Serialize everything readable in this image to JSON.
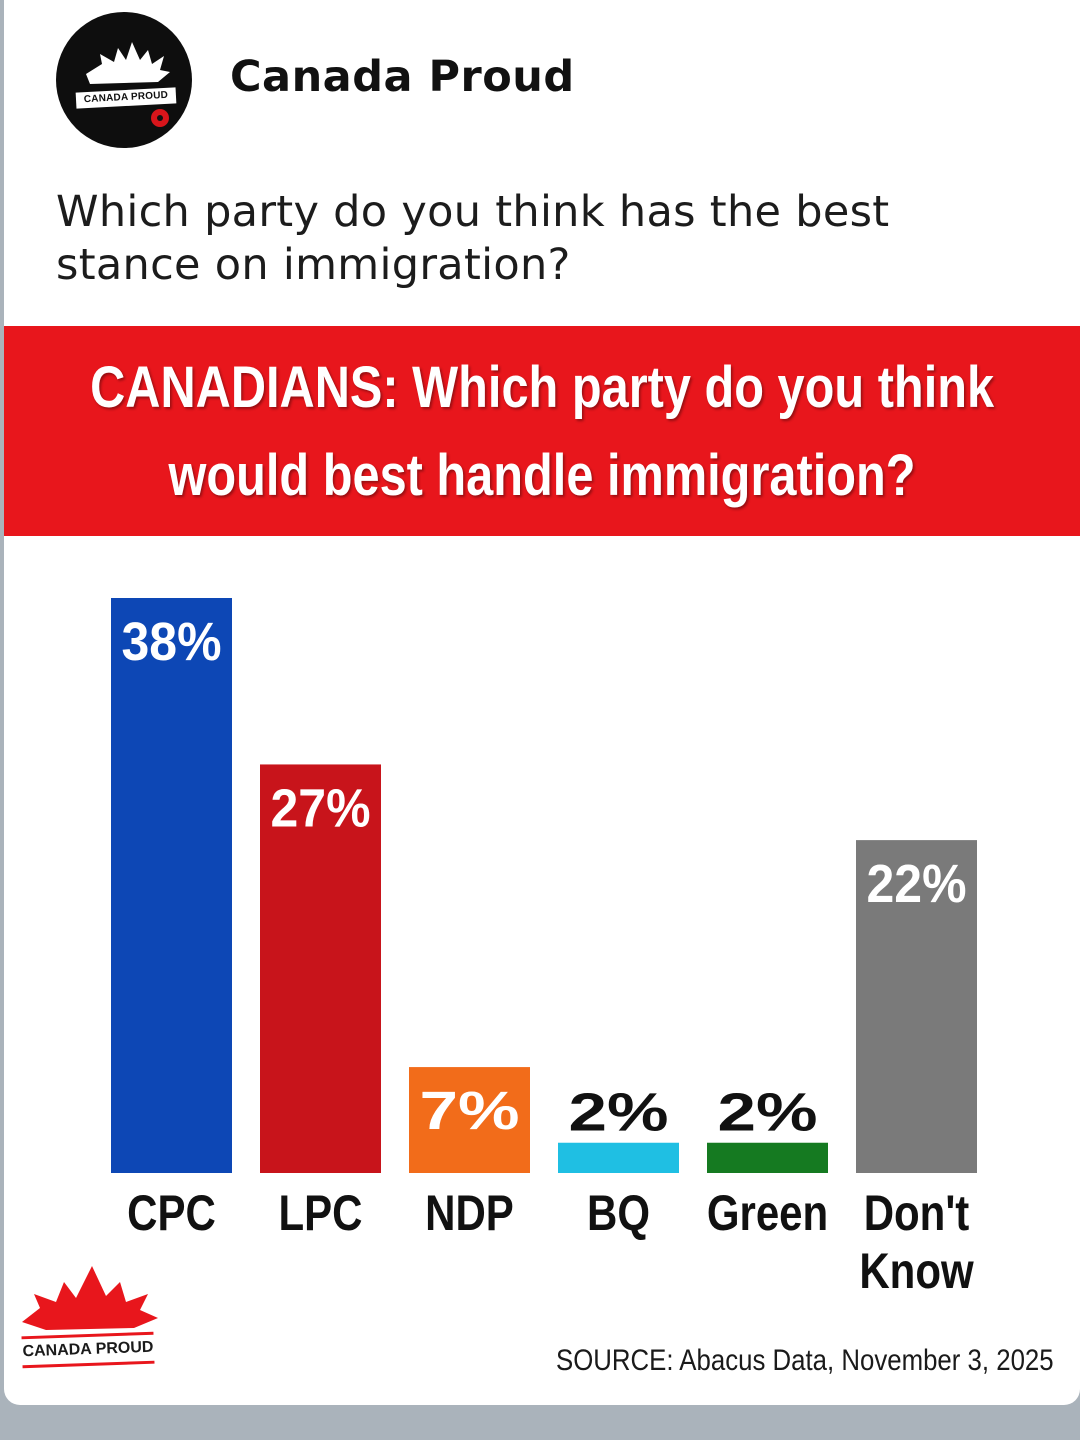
{
  "post": {
    "page_name": "Canada Proud",
    "avatar_text": "CANADA PROUD",
    "text": "Which party do you think has the best stance on immigration?"
  },
  "graphic": {
    "banner_line1": "CANADIANS: Which party do you think",
    "banner_line2": "would best handle immigration?",
    "logo_text": "CANADA PROUD",
    "source": "SOURCE: Abacus Data, November 3, 2025"
  },
  "colors": {
    "banner": "#e8161c",
    "CPC": "#0d47b5",
    "LPC": "#c8141b",
    "NDP": "#f26c1a",
    "BQ": "#1fbfe3",
    "Green": "#157a21",
    "Don't Know": "#7a7a7a"
  },
  "chart_data": {
    "type": "bar",
    "title": "CANADIANS: Which party do you think would best handle immigration?",
    "categories": [
      "CPC",
      "LPC",
      "NDP",
      "BQ",
      "Green",
      "Don't Know"
    ],
    "category_labels": [
      [
        "CPC"
      ],
      [
        "LPC"
      ],
      [
        "NDP"
      ],
      [
        "BQ"
      ],
      [
        "Green"
      ],
      [
        "Don't",
        "Know"
      ]
    ],
    "values": [
      38,
      27,
      7,
      2,
      2,
      22
    ],
    "value_labels": [
      "38%",
      "27%",
      "7%",
      "2%",
      "2%",
      "22%"
    ],
    "unit": "%",
    "xlabel": "",
    "ylabel": "",
    "ylim": [
      0,
      38
    ],
    "grid": false,
    "legend": "none"
  }
}
